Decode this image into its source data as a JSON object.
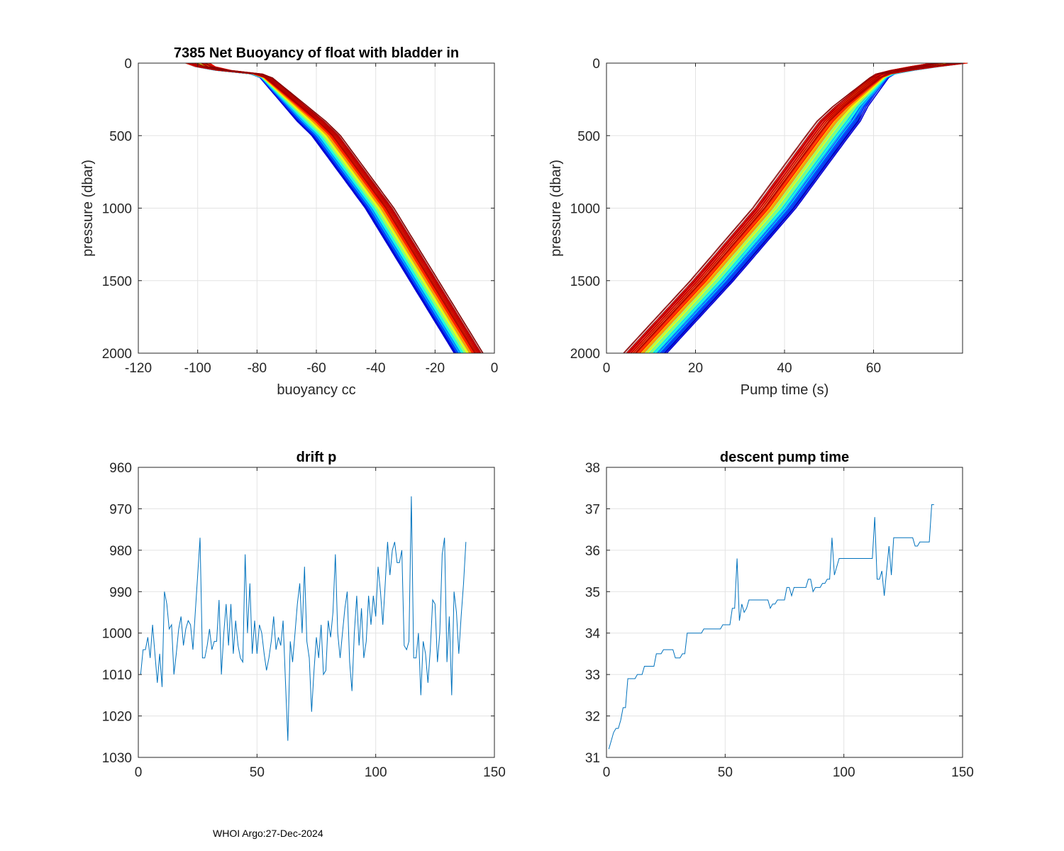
{
  "footer": "WHOI Argo:27-Dec-2024",
  "chart_data": [
    {
      "id": "buoyancy",
      "type": "line",
      "title": "7385 Net Buoyancy of float with bladder in",
      "xlabel": "buoyancy cc",
      "ylabel": "pressure (dbar)",
      "xlim": [
        -120,
        0
      ],
      "ylim": [
        0,
        2000
      ],
      "y_reversed": true,
      "xticks": [
        -120,
        -100,
        -80,
        -60,
        -40,
        -20,
        0
      ],
      "yticks": [
        0,
        500,
        1000,
        1500,
        2000
      ],
      "grid": true,
      "colormap": "jet (one line per profile, blue = early, red = late)",
      "profile_count": 138,
      "representative_profile": {
        "pressure": [
          0,
          40,
          80,
          300,
          500,
          1000,
          1500,
          2000
        ],
        "buoyancy": [
          -100,
          -96,
          -78,
          -67,
          -57,
          -39,
          -24,
          -9
        ]
      }
    },
    {
      "id": "pumptime",
      "type": "line",
      "title": "",
      "xlabel": "Pump time (s)",
      "ylabel": "pressure (dbar)",
      "xlim": [
        0,
        80
      ],
      "ylim": [
        0,
        2000
      ],
      "y_reversed": true,
      "xticks": [
        0,
        20,
        40,
        60
      ],
      "yticks": [
        0,
        500,
        1000,
        1500,
        2000
      ],
      "grid": true,
      "colormap": "jet (one line per profile, blue = early, red = late)",
      "profile_count": 138,
      "representative_profile": {
        "pressure": [
          0,
          40,
          80,
          300,
          500,
          1000,
          1500,
          2000
        ],
        "pump_time": [
          77,
          68,
          62,
          55,
          50,
          38,
          24,
          9
        ]
      }
    },
    {
      "id": "driftp",
      "type": "line",
      "title": "drift p",
      "xlabel": "",
      "ylabel": "",
      "xlim": [
        0,
        150
      ],
      "ylim": [
        960,
        1030
      ],
      "y_reversed": true,
      "xticks": [
        0,
        50,
        100,
        150
      ],
      "yticks": [
        960,
        970,
        980,
        990,
        1000,
        1010,
        1020,
        1030
      ],
      "grid": true,
      "color": "#0072BD",
      "x": [
        1,
        2,
        3,
        4,
        5,
        6,
        7,
        8,
        9,
        10,
        11,
        12,
        13,
        14,
        15,
        16,
        17,
        18,
        19,
        20,
        21,
        22,
        23,
        24,
        25,
        26,
        27,
        28,
        29,
        30,
        31,
        32,
        33,
        34,
        35,
        36,
        37,
        38,
        39,
        40,
        41,
        42,
        43,
        44,
        45,
        46,
        47,
        48,
        49,
        50,
        51,
        52,
        53,
        54,
        55,
        56,
        57,
        58,
        59,
        60,
        61,
        62,
        63,
        64,
        65,
        66,
        67,
        68,
        69,
        70,
        71,
        72,
        73,
        74,
        75,
        76,
        77,
        78,
        79,
        80,
        81,
        82,
        83,
        84,
        85,
        86,
        87,
        88,
        89,
        90,
        91,
        92,
        93,
        94,
        95,
        96,
        97,
        98,
        99,
        100,
        101,
        102,
        103,
        104,
        105,
        106,
        107,
        108,
        109,
        110,
        111,
        112,
        113,
        114,
        115,
        116,
        117,
        118,
        119,
        120,
        121,
        122,
        123,
        124,
        125,
        126,
        127,
        128,
        129,
        130,
        131,
        132,
        133,
        134,
        135,
        136,
        137,
        138
      ],
      "values": [
        1010,
        1004,
        1004,
        1001,
        1006,
        998,
        1005,
        1012,
        1005,
        1013,
        990,
        993,
        999,
        998,
        1010,
        1005,
        999,
        996,
        1003,
        999,
        997,
        998,
        1004,
        995,
        986,
        977,
        1006,
        1006,
        1003,
        999,
        1004,
        1002,
        1002,
        992,
        1010,
        1000,
        993,
        1003,
        993,
        1005,
        997,
        1003,
        1006,
        1007,
        981,
        1000,
        988,
        1005,
        997,
        1005,
        998,
        1000,
        1005,
        1009,
        1006,
        1002,
        996,
        1004,
        1001,
        1003,
        997,
        1012,
        1026,
        1002,
        1007,
        1000,
        993,
        988,
        1000,
        984,
        1002,
        1006,
        1019,
        1009,
        1001,
        1006,
        998,
        1010,
        1009,
        997,
        1001,
        995,
        981,
        1000,
        1006,
        1000,
        994,
        990,
        1007,
        1014,
        1000,
        991,
        1003,
        994,
        1006,
        1002,
        991,
        998,
        991,
        996,
        984,
        990,
        998,
        988,
        978,
        986,
        980,
        978,
        983,
        983,
        980,
        1003,
        1004,
        1002,
        967,
        1006,
        1006,
        1000,
        1015,
        1002,
        1005,
        1012,
        1004,
        992,
        993,
        1007,
        1000,
        981,
        977,
        1007,
        996,
        1015,
        990,
        995,
        1005,
        996,
        988,
        978
      ],
      "line_style": "thin line"
    },
    {
      "id": "pumpts",
      "type": "line",
      "title": "descent pump time",
      "xlabel": "",
      "ylabel": "",
      "xlim": [
        0,
        150
      ],
      "ylim": [
        31,
        38
      ],
      "y_reversed": false,
      "xticks": [
        0,
        50,
        100,
        150
      ],
      "yticks": [
        31,
        32,
        33,
        34,
        35,
        36,
        37,
        38
      ],
      "grid": true,
      "color": "#0072BD",
      "x": [
        1,
        2,
        3,
        4,
        5,
        6,
        7,
        8,
        9,
        10,
        11,
        12,
        13,
        14,
        15,
        16,
        17,
        18,
        19,
        20,
        21,
        22,
        23,
        24,
        25,
        26,
        27,
        28,
        29,
        30,
        31,
        32,
        33,
        34,
        35,
        36,
        37,
        38,
        39,
        40,
        41,
        42,
        43,
        44,
        45,
        46,
        47,
        48,
        49,
        50,
        51,
        52,
        53,
        54,
        55,
        56,
        57,
        58,
        59,
        60,
        61,
        62,
        63,
        64,
        65,
        66,
        67,
        68,
        69,
        70,
        71,
        72,
        73,
        74,
        75,
        76,
        77,
        78,
        79,
        80,
        81,
        82,
        83,
        84,
        85,
        86,
        87,
        88,
        89,
        90,
        91,
        92,
        93,
        94,
        95,
        96,
        97,
        98,
        99,
        100,
        101,
        102,
        103,
        104,
        105,
        106,
        107,
        108,
        109,
        110,
        111,
        112,
        113,
        114,
        115,
        116,
        117,
        118,
        119,
        120,
        121,
        122,
        123,
        124,
        125,
        126,
        127,
        128,
        129,
        130,
        131,
        132,
        133,
        134,
        135,
        136,
        137,
        138
      ],
      "values": [
        31.2,
        31.4,
        31.6,
        31.7,
        31.7,
        31.9,
        32.2,
        32.2,
        32.9,
        32.9,
        32.9,
        32.9,
        33.0,
        33.0,
        33.0,
        33.2,
        33.2,
        33.2,
        33.2,
        33.2,
        33.5,
        33.5,
        33.5,
        33.6,
        33.6,
        33.6,
        33.6,
        33.6,
        33.4,
        33.4,
        33.4,
        33.5,
        33.5,
        34.0,
        34.0,
        34.0,
        34.0,
        34.0,
        34.0,
        34.0,
        34.1,
        34.1,
        34.1,
        34.1,
        34.1,
        34.1,
        34.1,
        34.1,
        34.2,
        34.2,
        34.2,
        34.2,
        34.6,
        34.6,
        35.8,
        34.3,
        34.7,
        34.5,
        34.6,
        34.8,
        34.8,
        34.8,
        34.8,
        34.8,
        34.8,
        34.8,
        34.8,
        34.8,
        34.6,
        34.7,
        34.7,
        34.8,
        34.8,
        34.8,
        34.8,
        35.1,
        35.1,
        34.9,
        35.1,
        35.1,
        35.1,
        35.1,
        35.1,
        35.1,
        35.3,
        35.3,
        35.0,
        35.1,
        35.1,
        35.1,
        35.2,
        35.2,
        35.3,
        35.3,
        36.3,
        35.4,
        35.6,
        35.8,
        35.8,
        35.8,
        35.8,
        35.8,
        35.8,
        35.8,
        35.8,
        35.8,
        35.8,
        35.8,
        35.8,
        35.8,
        35.8,
        35.8,
        36.8,
        35.3,
        35.3,
        35.5,
        34.9,
        35.5,
        36.1,
        35.4,
        36.3,
        36.3,
        36.3,
        36.3,
        36.3,
        36.3,
        36.3,
        36.3,
        36.3,
        36.1,
        36.1,
        36.2,
        36.2,
        36.2,
        36.2,
        36.2,
        37.1,
        37.1
      ],
      "line_style": "thin line"
    }
  ]
}
